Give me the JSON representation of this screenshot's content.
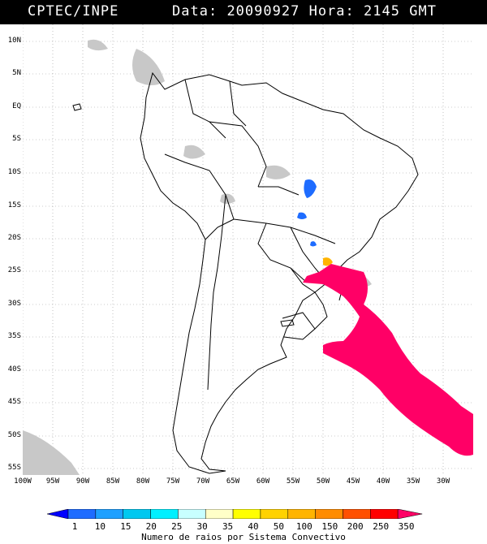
{
  "header": {
    "org": "CPTEC/INPE",
    "date_label": "Data:",
    "date": "20090927",
    "hour_label": "Hora:",
    "hour": "2145",
    "tz": "GMT"
  },
  "lat_labels": [
    "10N",
    "5N",
    "EQ",
    "5S",
    "10S",
    "15S",
    "20S",
    "25S",
    "30S",
    "35S",
    "40S",
    "45S",
    "50S",
    "55S"
  ],
  "lon_labels": [
    "100W",
    "95W",
    "90W",
    "85W",
    "80W",
    "75W",
    "70W",
    "65W",
    "60W",
    "55W",
    "50W",
    "45W",
    "40W",
    "35W",
    "30W"
  ],
  "legend": {
    "values": [
      "1",
      "10",
      "15",
      "20",
      "25",
      "30",
      "35",
      "40",
      "50",
      "100",
      "150",
      "200",
      "250",
      "350"
    ],
    "colors": [
      "#0000ff",
      "#1e6cff",
      "#1ea0ff",
      "#00c8f0",
      "#00f0ff",
      "#c8ffff",
      "#ffffc8",
      "#ffff00",
      "#ffd200",
      "#ffb400",
      "#ff8c00",
      "#ff5000",
      "#ff0000",
      "#ff0066"
    ],
    "caption": "Numero de raios por Sistema Convectivo"
  },
  "colors": {
    "land_cloud": "#c8c8c8",
    "outline": "#000000",
    "grid": "#999999",
    "blue_cluster": "#1e6cff",
    "yellow_cluster": "#ffb400",
    "pink_cluster": "#ff0066"
  }
}
